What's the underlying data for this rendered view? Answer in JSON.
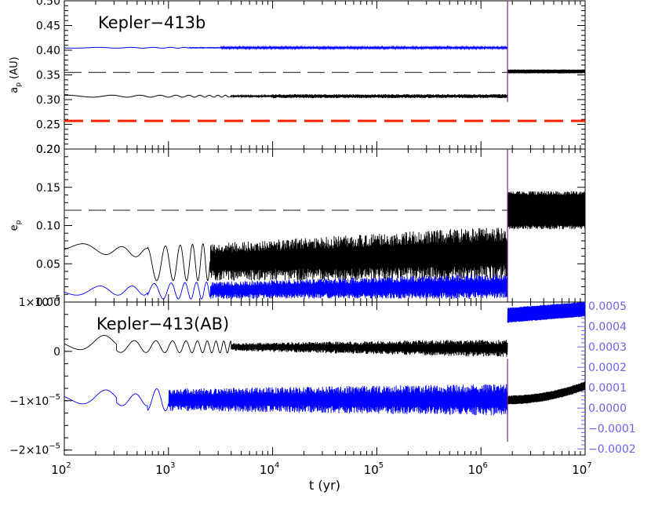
{
  "figure": {
    "xlabel": "t (yr)",
    "xscale": "log",
    "xlim": [
      100,
      10000000
    ],
    "x_ticks": [
      {
        "value": 100,
        "mant": "10",
        "exp": "2"
      },
      {
        "value": 1000,
        "mant": "10",
        "exp": "3"
      },
      {
        "value": 10000,
        "mant": "10",
        "exp": "4"
      },
      {
        "value": 100000,
        "mant": "10",
        "exp": "5"
      },
      {
        "value": 1000000,
        "mant": "10",
        "exp": "6"
      },
      {
        "value": 10000000,
        "mant": "10",
        "exp": "7"
      }
    ],
    "event_time": 1800000,
    "colors": {
      "black": "#000000",
      "blue": "#0000ff",
      "red": "#ff2200",
      "dash": "#444444",
      "axis_blue": "#6e63e6"
    }
  },
  "chart_data": [
    {
      "type": "line",
      "panel": "semi-major axis",
      "annotation": "Kepler−413b",
      "ylabel_base": "a",
      "ylabel_sub": "p",
      "ylabel_unit": " (AU)",
      "ylim": [
        0.2,
        0.5
      ],
      "y_ticks": [
        "0.20",
        "0.25",
        "0.30",
        "0.35",
        "0.40",
        "0.45",
        "0.50"
      ],
      "y_tick_values": [
        0.2,
        0.25,
        0.3,
        0.35,
        0.4,
        0.45,
        0.5
      ],
      "reference_lines": [
        {
          "y": 0.355,
          "style": "dashed",
          "color": "gray"
        },
        {
          "y": 0.257,
          "style": "dashed",
          "color": "red"
        }
      ],
      "series": [
        {
          "color": "blue",
          "before_event": 0.405,
          "after_event": null,
          "visible_range": [
            100,
            1800000
          ]
        },
        {
          "color": "black",
          "before_event": 0.307,
          "after_event": 0.357,
          "visible_range": [
            100,
            10000000
          ]
        }
      ]
    },
    {
      "type": "line",
      "panel": "eccentricity",
      "ylabel_base": "e",
      "ylabel_sub": "p",
      "ylabel_unit": "",
      "ylim": [
        0.0,
        0.2
      ],
      "y_ticks": [
        "0.00",
        "0.05",
        "0.10",
        "0.15",
        "0.20"
      ],
      "y_tick_values": [
        0.0,
        0.05,
        0.1,
        0.15,
        0.2
      ],
      "reference_lines": [
        {
          "y": 0.12,
          "style": "dashed",
          "color": "gray"
        }
      ],
      "series": [
        {
          "color": "black",
          "start": 0.08,
          "oscillation_range_late": [
            0.03,
            0.1
          ],
          "after_event_range": [
            0.095,
            0.145
          ]
        },
        {
          "color": "blue",
          "start": 0.01,
          "oscillation_range_late": [
            0.0,
            0.04
          ],
          "after_event_range": null
        }
      ]
    },
    {
      "type": "line",
      "panel": "binary",
      "annotation": "Kepler−413(AB)",
      "ylim": [
        -2.1e-05,
        1e-05
      ],
      "y_ticks": [
        {
          "value": 1e-05,
          "label": "1×10",
          "exp": "−5"
        },
        {
          "value": 0,
          "label": "0",
          "exp": ""
        },
        {
          "value": -1e-05,
          "label": "−1×10",
          "exp": "−5"
        },
        {
          "value": -2e-05,
          "label": "−2×10",
          "exp": "−5"
        }
      ],
      "right_axis": {
        "ylim": [
          -0.00023,
          0.00052
        ],
        "y_ticks": [
          "0.0005",
          "0.0004",
          "0.0003",
          "0.0002",
          "0.0001",
          "0.0000",
          "−0.0001",
          "−0.0002"
        ],
        "y_tick_values": [
          0.0005,
          0.0004,
          0.0003,
          0.0002,
          0.0001,
          0.0,
          -0.0001,
          -0.0002
        ]
      },
      "series": [
        {
          "color": "black",
          "axis": "left",
          "start": 1e-06,
          "after_event": null
        },
        {
          "color": "blue",
          "axis": "left",
          "start": -1e-05,
          "after_event_right_axis": [
            0.00042,
            0.00049
          ]
        },
        {
          "color": "black",
          "axis": "right",
          "after_event_right_axis": [
            0.0,
            0.0001
          ]
        }
      ]
    }
  ]
}
